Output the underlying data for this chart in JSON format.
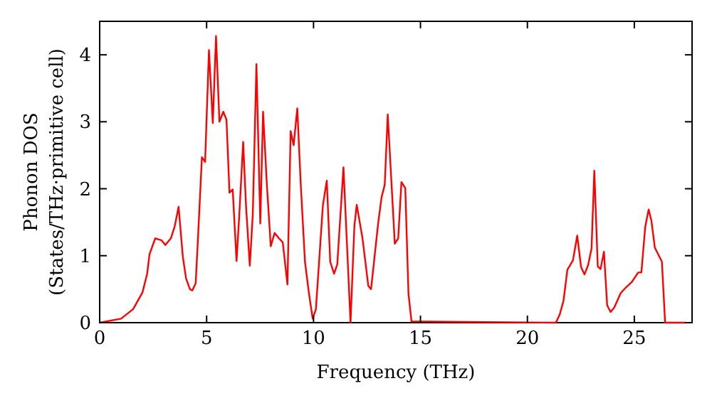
{
  "chart_data": {
    "type": "line",
    "xlabel": "Frequency (THz)",
    "ylabel": "Phonon DOS\n(States/THz·primitive cell)",
    "xlim": [
      0,
      27.7
    ],
    "ylim": [
      0,
      4.5
    ],
    "xticks": [
      0,
      5,
      10,
      15,
      20,
      25
    ],
    "yticks": [
      0,
      1,
      2,
      3,
      4
    ],
    "grid": false,
    "marker": "none",
    "line_style": "solid",
    "series": [
      {
        "color": "#ff0000",
        "x": [
          0,
          1,
          1.56,
          2,
          2.22,
          2.33,
          2.6,
          2.89,
          3.07,
          3.33,
          3.51,
          3.69,
          3.89,
          4.04,
          4.22,
          4.33,
          4.49,
          4.62,
          4.78,
          4.93,
          5.11,
          5.29,
          5.44,
          5.6,
          5.78,
          5.93,
          6.07,
          6.22,
          6.4,
          6.53,
          6.71,
          6.84,
          7.02,
          7.16,
          7.33,
          7.51,
          7.64,
          7.82,
          8,
          8.18,
          8.38,
          8.56,
          8.78,
          8.93,
          9.07,
          9.24,
          9.4,
          9.6,
          9.78,
          9.96,
          10.11,
          10.44,
          10.62,
          10.78,
          10.96,
          11.11,
          11.4,
          11.73,
          11.91,
          12.02,
          12.29,
          12.56,
          12.69,
          13.02,
          13.18,
          13.33,
          13.47,
          13.8,
          13.96,
          14.11,
          14.29,
          14.44,
          14.58,
          21.33,
          21.51,
          21.69,
          21.87,
          22.13,
          22.33,
          22.51,
          22.67,
          22.84,
          23,
          23.13,
          23.29,
          23.42,
          23.58,
          23.73,
          23.89,
          24.07,
          24.36,
          24.62,
          24.89,
          25.18,
          25.33,
          25.51,
          25.67,
          25.8,
          25.96,
          26.29,
          26.44,
          27.4
        ],
        "values": [
          0,
          0.06,
          0.2,
          0.45,
          0.73,
          1.02,
          1.26,
          1.23,
          1.16,
          1.26,
          1.44,
          1.73,
          0.98,
          0.66,
          0.5,
          0.48,
          0.59,
          1.41,
          2.47,
          2.4,
          4.07,
          2.98,
          4.28,
          3,
          3.15,
          3.03,
          1.94,
          1.99,
          0.92,
          1.62,
          2.7,
          1.76,
          0.85,
          1.62,
          3.86,
          1.48,
          3.15,
          2.05,
          1.14,
          1.34,
          1.26,
          1.2,
          0.57,
          2.86,
          2.65,
          3.2,
          2.08,
          0.91,
          0.45,
          0.06,
          0.2,
          1.76,
          2.12,
          0.91,
          0.73,
          0.87,
          2.32,
          0,
          1.44,
          1.76,
          1.26,
          0.55,
          0.5,
          1.48,
          1.87,
          2.06,
          3.11,
          1.18,
          1.26,
          2.1,
          2.01,
          0.43,
          0.02,
          0,
          0.12,
          0.33,
          0.79,
          0.93,
          1.3,
          0.83,
          0.72,
          0.86,
          1.11,
          2.27,
          0.84,
          0.8,
          1.06,
          0.26,
          0.16,
          0.23,
          0.44,
          0.53,
          0.61,
          0.75,
          0.75,
          1.43,
          1.69,
          1.52,
          1.12,
          0.91,
          0,
          0
        ]
      }
    ]
  }
}
